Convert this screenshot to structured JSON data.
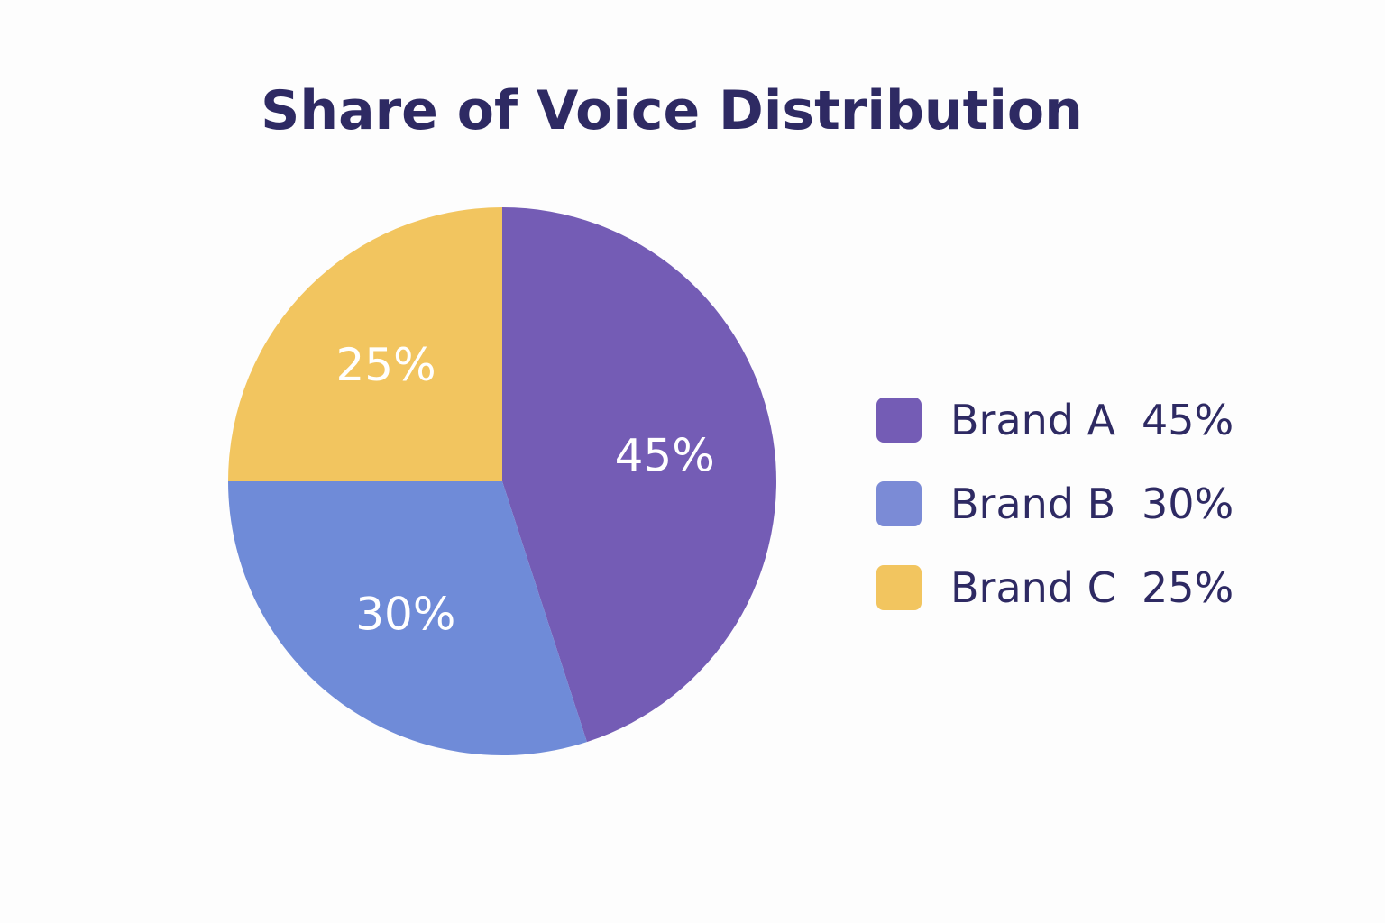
{
  "chart_data": {
    "type": "pie",
    "title": "Share of Voice Distribution",
    "slices": [
      {
        "name": "Brand A",
        "value": 45,
        "label": "45%",
        "color": "#745cb5"
      },
      {
        "name": "Brand B",
        "value": 30,
        "label": "30%",
        "color": "#6f8bd8"
      },
      {
        "name": "Brand C",
        "value": 25,
        "label": "25%",
        "color": "#f2c55f"
      }
    ],
    "legend": {
      "placement": "right",
      "entries": [
        {
          "name": "Brand A",
          "value_label": "45%",
          "color": "#745cb5"
        },
        {
          "name": "Brand B",
          "value_label": "30%",
          "color": "#7b8bd6"
        },
        {
          "name": "Brand C",
          "value_label": "25%",
          "color": "#f2c55f"
        }
      ]
    }
  }
}
